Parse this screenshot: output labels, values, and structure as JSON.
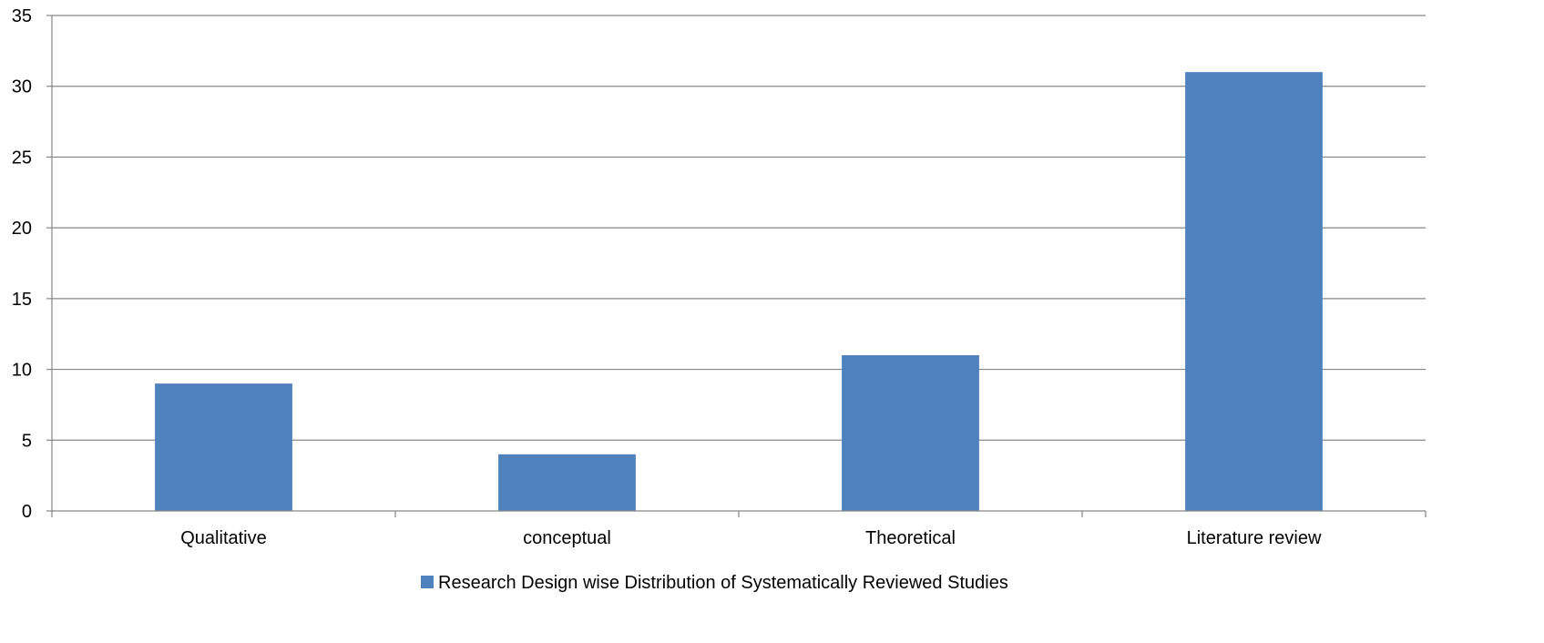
{
  "chart_data": {
    "type": "bar",
    "categories": [
      "Qualitative",
      "conceptual",
      "Theoretical",
      "Literature review"
    ],
    "series": [
      {
        "name": "Research Design wise Distribution of Systematically Reviewed Studies",
        "values": [
          9,
          4,
          11,
          31
        ],
        "color": "#4F81BD"
      }
    ],
    "ylim": [
      0,
      35
    ],
    "yticks": [
      0,
      5,
      10,
      15,
      20,
      25,
      30,
      35
    ],
    "grid": true,
    "legend_position": "bottom"
  },
  "colors": {
    "bar": "#4F81BD",
    "grid": "#868686",
    "axis": "#868686",
    "text": "#000000"
  }
}
